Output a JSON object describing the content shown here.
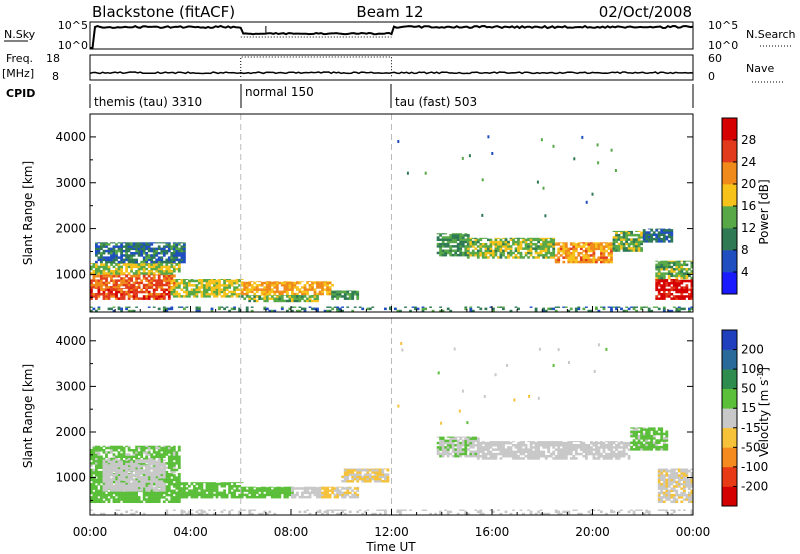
{
  "header": {
    "station": "Blackstone (fitACF)",
    "beam": "Beam 12",
    "date": "02/Oct/2008"
  },
  "labels": {
    "nsky": "N.Sky",
    "freq": "Freq.",
    "mhz": "[MHz]",
    "cpid": "CPID",
    "nsearch": "N.Search",
    "nave": "Nave",
    "pow_min": "10^0",
    "pow_max": "10^5"
  },
  "freq_axis": {
    "ticks": [
      "8",
      "18"
    ],
    "range": [
      8,
      18
    ]
  },
  "nave_axis": {
    "ticks": [
      "0",
      "60"
    ],
    "range": [
      0,
      60
    ]
  },
  "cpid": [
    {
      "name": "themis (tau) 3310",
      "start_hour": 0,
      "end_hour": 6
    },
    {
      "name": "normal 150",
      "start_hour": 6,
      "end_hour": 12
    },
    {
      "name": "tau (fast) 503",
      "start_hour": 12,
      "end_hour": 24
    }
  ],
  "x_axis": {
    "label": "Time UT",
    "ticks": [
      "00:00",
      "04:00",
      "08:00",
      "12:00",
      "16:00",
      "20:00",
      "00:00"
    ],
    "range_hours": [
      0,
      24
    ]
  },
  "y_axis": {
    "label": "Slant Range [km]",
    "ticks": [
      "1000",
      "2000",
      "3000",
      "4000"
    ],
    "tick_values": [
      1000,
      2000,
      3000,
      4000
    ],
    "range": [
      180,
      4500
    ]
  },
  "power_scale": {
    "title": "Power [dB]",
    "ticks": [
      "4",
      "8",
      "12",
      "16",
      "20",
      "24",
      "28"
    ],
    "colors": [
      "#1a1aff",
      "#1f4ec0",
      "#2f7a55",
      "#58a848",
      "#f7c219",
      "#f08a1a",
      "#e23a1c",
      "#d60000"
    ]
  },
  "velocity_scale": {
    "title": "Velocity [m s",
    "title_sup": "-1",
    "title_end": "]",
    "ticks": [
      "200",
      "100",
      "50",
      "15",
      "-15",
      "-50",
      "-100",
      "-200"
    ],
    "colors": [
      "#1f3fbf",
      "#2a6a9a",
      "#2e8c4e",
      "#5bbf3a",
      "#c8c8c8",
      "#f5c23a",
      "#f58a1e",
      "#e83a14",
      "#d40000"
    ]
  },
  "chart_data": [
    {
      "type": "heatmap",
      "title": "Power [dB]",
      "xlabel": "Time UT",
      "ylabel": "Slant Range [km]",
      "x_unit": "hours UT",
      "xlim": [
        0,
        24
      ],
      "ylim": [
        180,
        4500
      ],
      "zlim": [
        0,
        32
      ],
      "regions": [
        {
          "t": [
            0.0,
            3.2
          ],
          "range": [
            450,
            700
          ],
          "value": 26
        },
        {
          "t": [
            0.0,
            3.4
          ],
          "range": [
            700,
            1000
          ],
          "value": 24
        },
        {
          "t": [
            0.0,
            3.6
          ],
          "range": [
            1000,
            1250
          ],
          "value": 16
        },
        {
          "t": [
            0.2,
            3.8
          ],
          "range": [
            1250,
            1700
          ],
          "value": 9
        },
        {
          "t": [
            3.2,
            6.0
          ],
          "range": [
            500,
            900
          ],
          "value": 16
        },
        {
          "t": [
            6.0,
            9.6
          ],
          "range": [
            550,
            850
          ],
          "value": 20
        },
        {
          "t": [
            6.0,
            9.0
          ],
          "range": [
            400,
            550
          ],
          "value": 14
        },
        {
          "t": [
            9.6,
            10.6
          ],
          "range": [
            450,
            650
          ],
          "value": 12
        },
        {
          "t": [
            13.8,
            15.0
          ],
          "range": [
            1400,
            1900
          ],
          "value": 12
        },
        {
          "t": [
            15.0,
            18.5
          ],
          "range": [
            1350,
            1800
          ],
          "value": 15
        },
        {
          "t": [
            18.5,
            20.8
          ],
          "range": [
            1250,
            1700
          ],
          "value": 21
        },
        {
          "t": [
            20.8,
            22.0
          ],
          "range": [
            1500,
            1950
          ],
          "value": 14
        },
        {
          "t": [
            22.0,
            23.2
          ],
          "range": [
            1700,
            2000
          ],
          "value": 8
        },
        {
          "t": [
            22.5,
            24.0
          ],
          "range": [
            450,
            900
          ],
          "value": 30
        },
        {
          "t": [
            22.5,
            24.0
          ],
          "range": [
            900,
            1300
          ],
          "value": 14
        },
        {
          "t": [
            0.0,
            24.0
          ],
          "range": [
            180,
            300
          ],
          "value": 10
        }
      ]
    },
    {
      "type": "heatmap",
      "title": "Velocity [m s-1]",
      "xlabel": "Time UT",
      "ylabel": "Slant Range [km]",
      "x_unit": "hours UT",
      "xlim": [
        0,
        24
      ],
      "ylim": [
        180,
        4500
      ],
      "zlim": [
        -250,
        250
      ],
      "regions": [
        {
          "t": [
            0.0,
            3.6
          ],
          "range": [
            450,
            1100
          ],
          "value": -60
        },
        {
          "t": [
            0.0,
            3.6
          ],
          "range": [
            1100,
            1700
          ],
          "value": -40
        },
        {
          "t": [
            0.5,
            3.0
          ],
          "range": [
            700,
            1400
          ],
          "value": -5
        },
        {
          "t": [
            3.4,
            6.0
          ],
          "range": [
            550,
            900
          ],
          "value": -60
        },
        {
          "t": [
            6.0,
            8.0
          ],
          "range": [
            550,
            800
          ],
          "value": -60
        },
        {
          "t": [
            8.0,
            9.2
          ],
          "range": [
            550,
            800
          ],
          "value": 0
        },
        {
          "t": [
            9.2,
            9.7
          ],
          "range": [
            550,
            800
          ],
          "value": 60
        },
        {
          "t": [
            9.7,
            10.6
          ],
          "range": [
            550,
            800
          ],
          "value": 25
        },
        {
          "t": [
            10.0,
            11.8
          ],
          "range": [
            900,
            1200
          ],
          "value": 25
        },
        {
          "t": [
            13.8,
            15.4
          ],
          "range": [
            1450,
            1900
          ],
          "value": -20
        },
        {
          "t": [
            15.4,
            21.5
          ],
          "range": [
            1400,
            1800
          ],
          "value": 0
        },
        {
          "t": [
            21.5,
            23.0
          ],
          "range": [
            1600,
            2100
          ],
          "value": -40
        },
        {
          "t": [
            22.6,
            24.0
          ],
          "range": [
            450,
            1200
          ],
          "value": 20
        },
        {
          "t": [
            0.0,
            24.0
          ],
          "range": [
            180,
            300
          ],
          "value": 5
        }
      ]
    }
  ]
}
